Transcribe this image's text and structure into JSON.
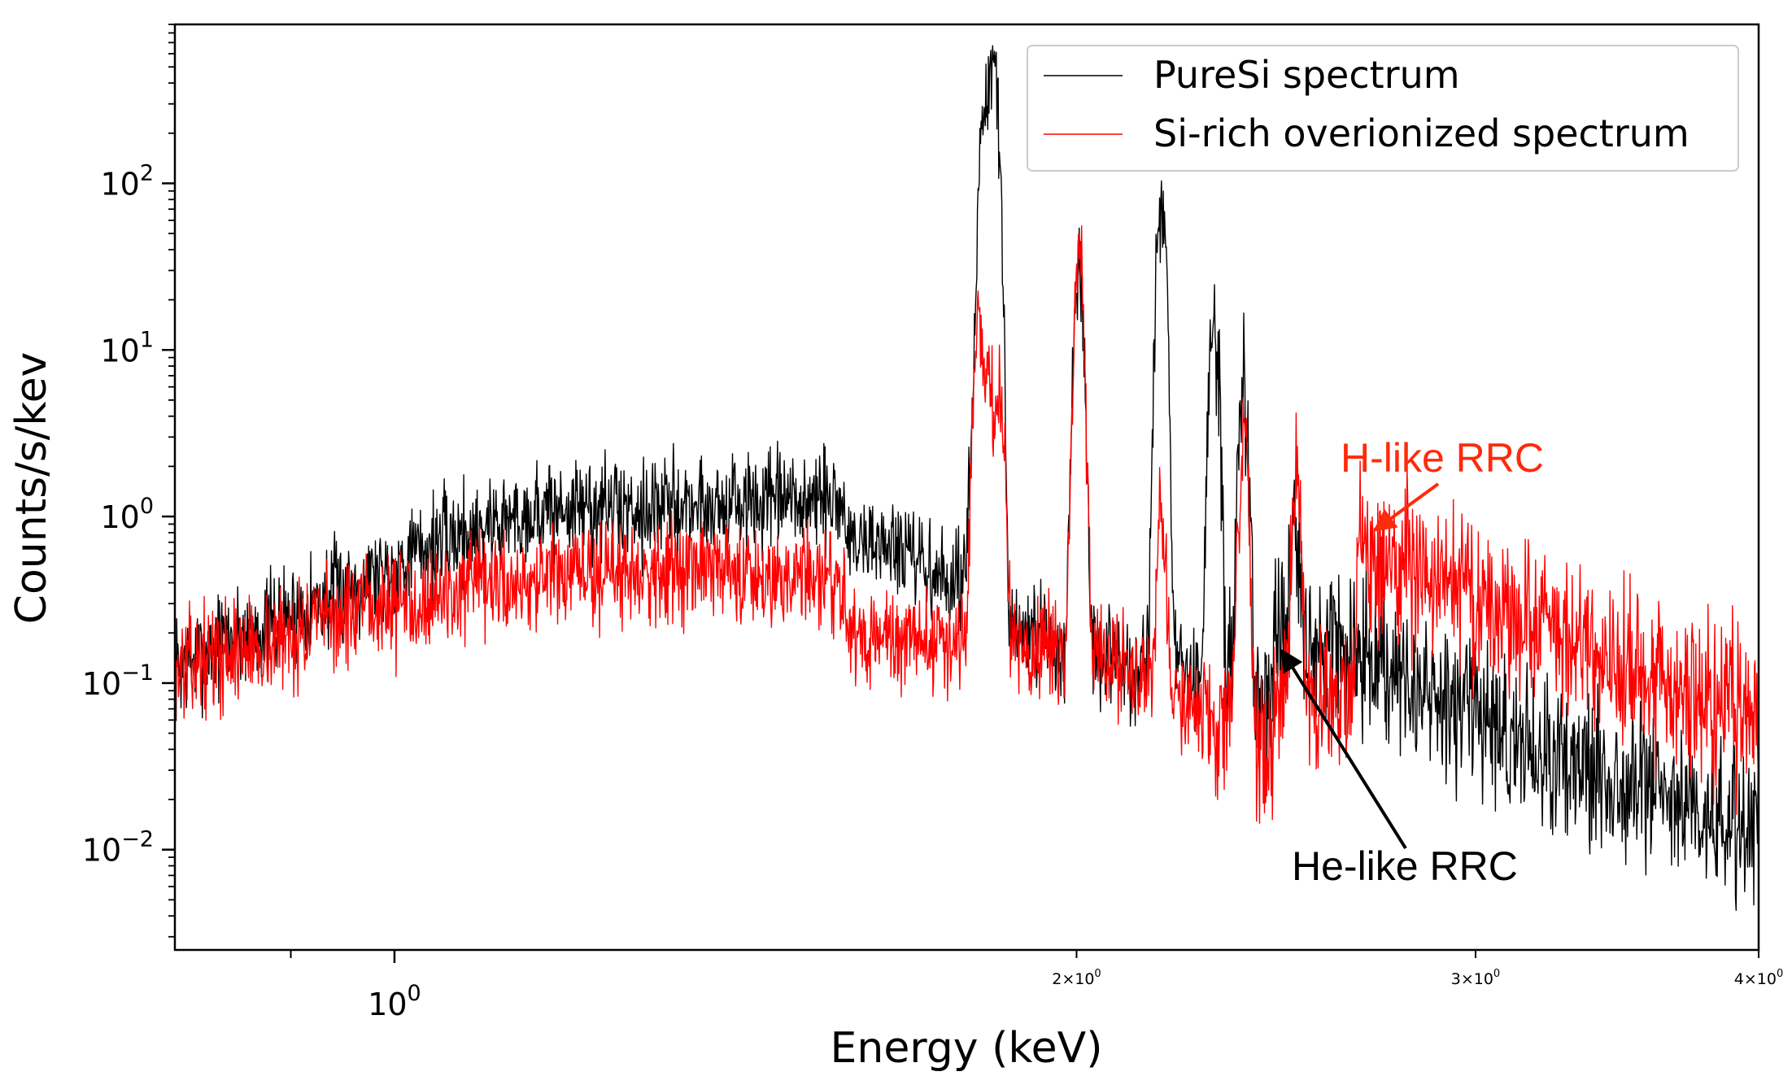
{
  "chart_data": {
    "type": "line",
    "title": "",
    "xlabel": "Energy (keV)",
    "ylabel": "Counts/s/kev",
    "xscale": "log",
    "yscale": "log",
    "xlim": [
      0.8,
      4.0
    ],
    "ylim": [
      0.0025,
      900
    ],
    "grid": false,
    "legend": "top-right",
    "x_ticks": [
      {
        "value": 1.0,
        "base": "10",
        "exp": "0",
        "size": "major"
      },
      {
        "value": 2.0,
        "base": "2×10",
        "exp": "0",
        "size": "minor"
      },
      {
        "value": 3.0,
        "base": "3×10",
        "exp": "0",
        "size": "minor"
      },
      {
        "value": 4.0,
        "base": "4×10",
        "exp": "0",
        "size": "minor"
      }
    ],
    "y_ticks": [
      {
        "value": 0.01,
        "base": "10",
        "exp": "−2"
      },
      {
        "value": 0.1,
        "base": "10",
        "exp": "−1"
      },
      {
        "value": 1,
        "base": "10",
        "exp": "0"
      },
      {
        "value": 10,
        "base": "10",
        "exp": "1"
      },
      {
        "value": 100,
        "base": "10",
        "exp": "2"
      }
    ],
    "series": [
      {
        "name": "PureSi spectrum",
        "color": "#000000",
        "continuum": [
          [
            0.8,
            0.12
          ],
          [
            0.84,
            0.18
          ],
          [
            0.88,
            0.22
          ],
          [
            0.92,
            0.3
          ],
          [
            0.96,
            0.4
          ],
          [
            1.0,
            0.52
          ],
          [
            1.05,
            0.72
          ],
          [
            1.1,
            0.9
          ],
          [
            1.15,
            1.05
          ],
          [
            1.2,
            1.12
          ],
          [
            1.3,
            1.15
          ],
          [
            1.4,
            1.18
          ],
          [
            1.5,
            1.2
          ],
          [
            1.58,
            1.22
          ],
          [
            1.585,
            0.65
          ],
          [
            1.6,
            0.72
          ],
          [
            1.65,
            0.68
          ],
          [
            1.7,
            0.52
          ],
          [
            1.75,
            0.4
          ],
          [
            1.82,
            0.3
          ],
          [
            1.88,
            0.2
          ],
          [
            1.95,
            0.17
          ],
          [
            2.0,
            0.15
          ],
          [
            2.1,
            0.13
          ],
          [
            2.2,
            0.12
          ],
          [
            2.3,
            0.1
          ],
          [
            2.4,
            0.09
          ],
          [
            2.44,
            0.08
          ],
          [
            2.445,
            0.2
          ],
          [
            2.5,
            0.19
          ],
          [
            2.6,
            0.16
          ],
          [
            2.8,
            0.1
          ],
          [
            3.0,
            0.06
          ],
          [
            3.2,
            0.04
          ],
          [
            3.5,
            0.025
          ],
          [
            4.0,
            0.013
          ]
        ],
        "lines": [
          [
            1.8,
            3.2
          ],
          [
            1.82,
            220
          ],
          [
            1.83,
            150
          ],
          [
            1.84,
            470
          ],
          [
            2.0,
            4.8
          ],
          [
            2.005,
            24
          ],
          [
            2.18,
            75
          ],
          [
            2.3,
            17
          ],
          [
            2.37,
            7
          ],
          [
            2.5,
            0.6
          ]
        ],
        "noise": 0.35,
        "seed": 7
      },
      {
        "name": "Si-rich overionized spectrum",
        "color": "#ff0000",
        "continuum": [
          [
            0.8,
            0.12
          ],
          [
            0.84,
            0.15
          ],
          [
            0.88,
            0.17
          ],
          [
            0.92,
            0.22
          ],
          [
            0.96,
            0.26
          ],
          [
            1.0,
            0.3
          ],
          [
            1.1,
            0.38
          ],
          [
            1.2,
            0.44
          ],
          [
            1.3,
            0.48
          ],
          [
            1.4,
            0.47
          ],
          [
            1.5,
            0.44
          ],
          [
            1.58,
            0.42
          ],
          [
            1.585,
            0.18
          ],
          [
            1.7,
            0.18
          ],
          [
            1.8,
            0.18
          ],
          [
            1.9,
            0.16
          ],
          [
            2.0,
            0.14
          ],
          [
            2.1,
            0.12
          ],
          [
            2.2,
            0.09
          ],
          [
            2.3,
            0.06
          ],
          [
            2.4,
            0.045
          ],
          [
            2.44,
            0.04
          ],
          [
            2.445,
            0.1
          ],
          [
            2.55,
            0.08
          ],
          [
            2.65,
            0.07
          ],
          [
            2.665,
            0.7
          ],
          [
            2.8,
            0.5
          ],
          [
            3.0,
            0.35
          ],
          [
            3.2,
            0.22
          ],
          [
            3.5,
            0.12
          ],
          [
            4.0,
            0.06
          ]
        ],
        "lines": [
          [
            1.81,
            16
          ],
          [
            1.83,
            7
          ],
          [
            1.85,
            5.5
          ],
          [
            2.005,
            38
          ],
          [
            2.18,
            0.9
          ],
          [
            2.37,
            3.4
          ],
          [
            2.5,
            1.3
          ]
        ],
        "noise": 0.35,
        "seed": 13
      }
    ],
    "annotations": [
      {
        "text": "H-like RRC",
        "color": "#ff2a0a",
        "x": 2.665,
        "y": 0.75
      },
      {
        "text": "He-like RRC",
        "color": "#000000",
        "x": 2.45,
        "y": 0.14
      }
    ]
  }
}
